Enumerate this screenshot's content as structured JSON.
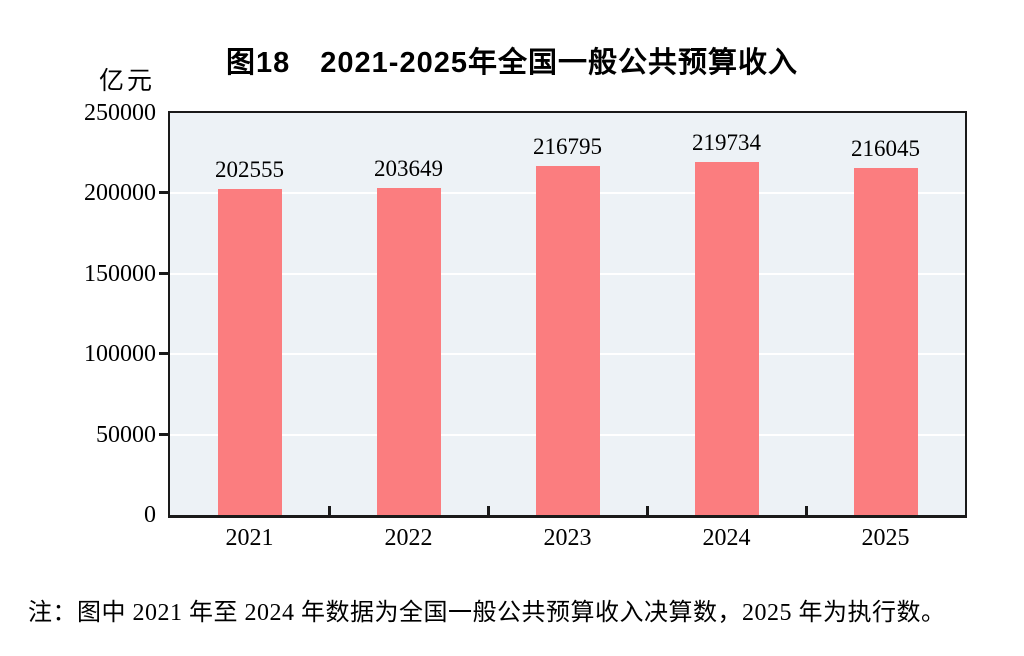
{
  "figure": {
    "note": "注：图中 2021 年至 2024 年数据为全国一般公共预算收入决算数，2025 年为执行数。"
  },
  "chart_data": {
    "type": "bar",
    "title": "图18　2021-2025年全国一般公共预算收入",
    "ylabel": "亿元",
    "xlabel": "",
    "categories": [
      "2021",
      "2022",
      "2023",
      "2024",
      "2025"
    ],
    "values": [
      202555,
      203649,
      216795,
      219734,
      216045
    ],
    "ylim": [
      0,
      250000
    ],
    "y_ticks": [
      0,
      50000,
      100000,
      150000,
      200000,
      250000
    ],
    "grid": true,
    "legend": "none",
    "colors": {
      "bar": "#fb7d7f",
      "plot_bg": "#edf2f6",
      "gridline": "#ffffff",
      "axis": "#1a1a1a",
      "text": "#000000"
    }
  }
}
